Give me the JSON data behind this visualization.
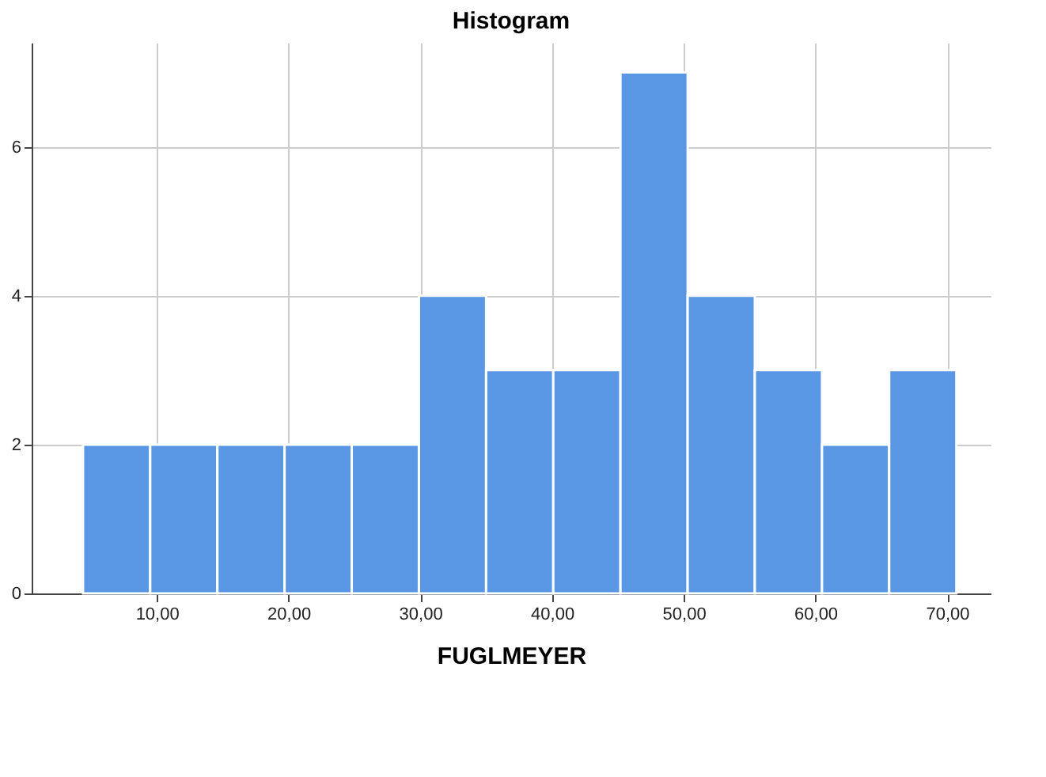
{
  "chart_data": {
    "type": "histogram",
    "title": "Histogram",
    "xlabel": "FUGLMEYER",
    "bins": [
      4.4,
      9.5,
      14.6,
      19.7,
      24.8,
      29.9,
      35.0,
      40.1,
      45.2,
      50.3,
      55.4,
      60.5,
      65.6,
      70.7
    ],
    "values": [
      2,
      2,
      2,
      2,
      2,
      4,
      3,
      3,
      7,
      4,
      3,
      2,
      3
    ],
    "color": "#5996e4",
    "xlim": [
      0.5,
      73.3
    ],
    "xticks": [
      {
        "value": 10,
        "label": "10,00"
      },
      {
        "value": 20,
        "label": "20,00"
      },
      {
        "value": 30,
        "label": "30,00"
      },
      {
        "value": 40,
        "label": "40,00"
      },
      {
        "value": 50,
        "label": "50,00"
      },
      {
        "value": 60,
        "label": "60,00"
      },
      {
        "value": 70,
        "label": "70,00"
      }
    ],
    "ylim": [
      0,
      7.4
    ],
    "yticks": [
      0,
      2,
      4,
      6
    ],
    "grid": true
  }
}
